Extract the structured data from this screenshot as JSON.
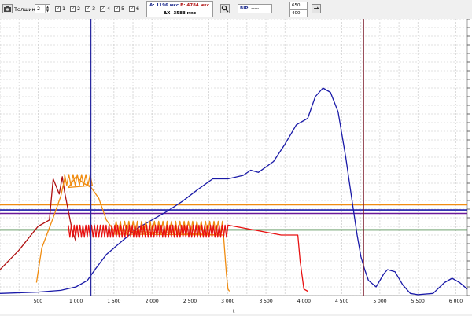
{
  "toolbar": {
    "thickness_label": "Толщина:",
    "thickness_value": "2",
    "channels": [
      {
        "label": "1",
        "checked": true
      },
      {
        "label": "2",
        "checked": true
      },
      {
        "label": "3",
        "checked": true
      },
      {
        "label": "4",
        "checked": true
      },
      {
        "label": "5",
        "checked": true
      },
      {
        "label": "6",
        "checked": true
      }
    ],
    "readout": {
      "a_text": "A: 1196 мкс",
      "b_text": "B: 4784 мкс",
      "dx_text": "ΔX: 3588 мкс"
    },
    "bip_label": "BIP:",
    "bip_value": "-----",
    "range_max": "650",
    "range_min": "400",
    "check_mark": "✓",
    "go_arrow": "→"
  },
  "colors": {
    "blue": "#1a1aa8",
    "red": "#e81010",
    "orange": "#f08c10",
    "darkred": "#b01010",
    "green": "#1a6a1a",
    "purple": "#6a1a9a",
    "cursor_a": "#2a2aa0",
    "cursor_b": "#7a1a2a"
  },
  "chart_data": {
    "type": "line",
    "xlabel": "t",
    "x_ticks": [
      "500",
      "1 000",
      "1 500",
      "2 000",
      "2 500",
      "3 000",
      "3 500",
      "4 000",
      "4 500",
      "5 000",
      "5 500",
      "6 000"
    ],
    "xlim": [
      0,
      6150
    ],
    "ylim": [
      0,
      640
    ],
    "cursors": {
      "a_x": 1196,
      "b_x": 4784
    },
    "horizontal_levels": [
      {
        "color": "orange",
        "y": 210
      },
      {
        "color": "blue",
        "y": 198
      },
      {
        "color": "purple",
        "y": 190
      },
      {
        "color": "green",
        "y": 152
      }
    ],
    "series": [
      {
        "color": "blue",
        "points": [
          [
            0,
            5
          ],
          [
            500,
            8
          ],
          [
            800,
            12
          ],
          [
            1000,
            20
          ],
          [
            1150,
            35
          ],
          [
            1250,
            60
          ],
          [
            1400,
            95
          ],
          [
            1600,
            125
          ],
          [
            1800,
            155
          ],
          [
            2000,
            175
          ],
          [
            2200,
            195
          ],
          [
            2400,
            218
          ],
          [
            2600,
            245
          ],
          [
            2800,
            270
          ],
          [
            3000,
            270
          ],
          [
            3200,
            278
          ],
          [
            3300,
            290
          ],
          [
            3400,
            285
          ],
          [
            3600,
            310
          ],
          [
            3750,
            350
          ],
          [
            3900,
            395
          ],
          [
            4050,
            410
          ],
          [
            4150,
            460
          ],
          [
            4250,
            480
          ],
          [
            4350,
            470
          ],
          [
            4450,
            425
          ],
          [
            4550,
            320
          ],
          [
            4650,
            200
          ],
          [
            4700,
            140
          ],
          [
            4750,
            90
          ],
          [
            4800,
            60
          ],
          [
            4850,
            35
          ],
          [
            4950,
            20
          ],
          [
            5050,
            50
          ],
          [
            5100,
            60
          ],
          [
            5200,
            55
          ],
          [
            5300,
            25
          ],
          [
            5400,
            5
          ],
          [
            5500,
            2
          ],
          [
            5700,
            5
          ],
          [
            5850,
            30
          ],
          [
            5950,
            40
          ],
          [
            6050,
            30
          ],
          [
            6150,
            15
          ]
        ]
      },
      {
        "color": "darkred",
        "points": [
          [
            0,
            60
          ],
          [
            250,
            105
          ],
          [
            500,
            160
          ],
          [
            650,
            175
          ],
          [
            700,
            270
          ],
          [
            780,
            235
          ],
          [
            820,
            275
          ],
          [
            850,
            240
          ],
          [
            950,
            150
          ],
          [
            1000,
            125
          ]
        ]
      },
      {
        "color": "orange",
        "points": [
          [
            480,
            30
          ],
          [
            550,
            110
          ],
          [
            700,
            180
          ],
          [
            800,
            230
          ],
          [
            850,
            270
          ],
          [
            900,
            250
          ],
          [
            1000,
            275
          ],
          [
            1100,
            260
          ],
          [
            1200,
            250
          ],
          [
            1300,
            225
          ],
          [
            1400,
            175
          ],
          [
            1500,
            150
          ],
          [
            2950,
            140
          ],
          [
            2980,
            50
          ],
          [
            3000,
            15
          ],
          [
            3020,
            10
          ]
        ]
      },
      {
        "color": "red",
        "points": [
          [
            900,
            145
          ],
          [
            3000,
            145
          ],
          [
            3700,
            140
          ],
          [
            3920,
            140
          ],
          [
            3950,
            80
          ],
          [
            4000,
            15
          ],
          [
            4050,
            10
          ]
        ]
      }
    ]
  }
}
